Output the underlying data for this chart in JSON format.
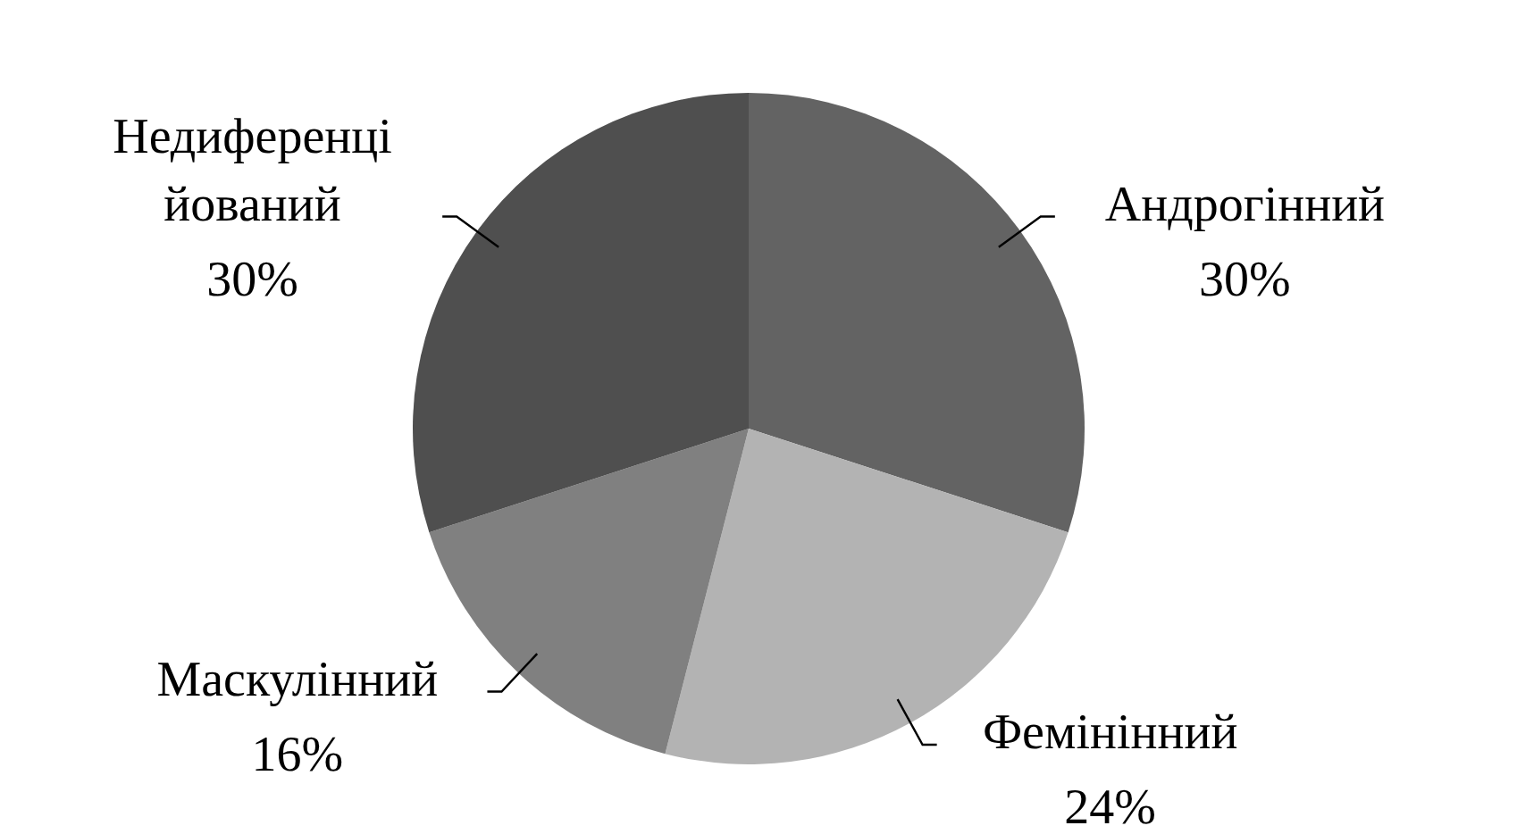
{
  "chart_data": {
    "type": "pie",
    "categories": [
      "Андрогінний",
      "Фемінінний",
      "Маскулінний",
      "Недиференці\nйований"
    ],
    "values": [
      30,
      24,
      16,
      30
    ],
    "value_labels": [
      "30%",
      "24%",
      "16%",
      "30%"
    ],
    "colors": [
      "#636363",
      "#b3b3b3",
      "#808080",
      "#4f4f4f"
    ]
  }
}
